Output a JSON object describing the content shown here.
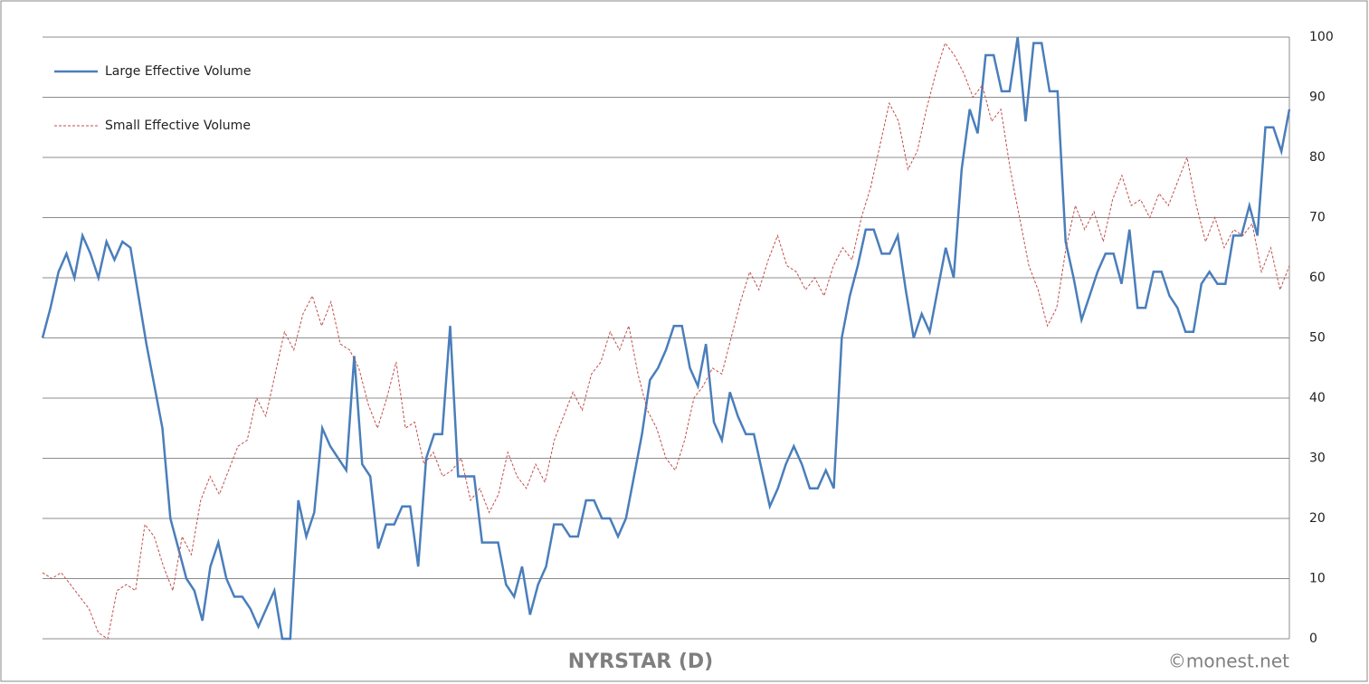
{
  "chart_data": {
    "type": "line",
    "title": "NYRSTAR (D)",
    "annotation": "©monest.net",
    "ylim": [
      0,
      100
    ],
    "yticks": [
      0,
      10,
      20,
      30,
      40,
      50,
      60,
      70,
      80,
      90,
      100
    ],
    "grid": true,
    "legend": "top-left",
    "series": [
      {
        "name": "Large Effective Volume",
        "color": "#4a7ebb",
        "dash": false,
        "values": [
          50,
          55,
          61,
          64,
          60,
          67,
          64,
          60,
          66,
          63,
          66,
          65,
          57,
          49,
          42,
          35,
          20,
          15,
          10,
          8,
          3,
          12,
          16,
          10,
          7,
          7,
          5,
          2,
          5,
          8,
          0,
          0,
          23,
          17,
          21,
          35,
          32,
          30,
          28,
          47,
          29,
          27,
          15,
          19,
          19,
          22,
          22,
          12,
          30,
          34,
          34,
          52,
          27,
          27,
          27,
          16,
          16,
          16,
          9,
          7,
          12,
          4,
          9,
          12,
          19,
          19,
          17,
          17,
          23,
          23,
          20,
          20,
          17,
          20,
          27,
          34,
          43,
          45,
          48,
          52,
          52,
          45,
          42,
          49,
          36,
          33,
          41,
          37,
          34,
          34,
          28,
          22,
          25,
          29,
          32,
          29,
          25,
          25,
          28,
          25,
          50,
          57,
          62,
          68,
          68,
          64,
          64,
          67,
          58,
          50,
          54,
          51,
          58,
          65,
          60,
          78,
          88,
          84,
          97,
          97,
          91,
          91,
          100,
          86,
          99,
          99,
          91,
          91,
          66,
          60,
          53,
          57,
          61,
          64,
          64,
          59,
          68,
          55,
          55,
          61,
          61,
          57,
          55,
          51,
          51,
          59,
          61,
          59,
          59,
          67,
          67,
          72,
          67,
          85,
          85,
          81,
          88
        ]
      },
      {
        "name": "Small Effective Volume",
        "color": "#c0504d",
        "dash": true,
        "values": [
          11,
          10,
          11,
          9,
          7,
          5,
          1,
          0,
          8,
          9,
          8,
          19,
          17,
          12,
          8,
          17,
          14,
          23,
          27,
          24,
          28,
          32,
          33,
          40,
          37,
          44,
          51,
          48,
          54,
          57,
          52,
          56,
          49,
          48,
          45,
          39,
          35,
          40,
          46,
          35,
          36,
          29,
          31,
          27,
          28,
          30,
          23,
          25,
          21,
          24,
          31,
          27,
          25,
          29,
          26,
          33,
          37,
          41,
          38,
          44,
          46,
          51,
          48,
          52,
          44,
          38,
          35,
          30,
          28,
          33,
          40,
          42,
          45,
          44,
          50,
          56,
          61,
          58,
          63,
          67,
          62,
          61,
          58,
          60,
          57,
          62,
          65,
          63,
          70,
          75,
          82,
          89,
          86,
          78,
          81,
          88,
          94,
          99,
          97,
          94,
          90,
          92,
          86,
          88,
          78,
          70,
          62,
          58,
          52,
          55,
          65,
          72,
          68,
          71,
          66,
          73,
          77,
          72,
          73,
          70,
          74,
          72,
          76,
          80,
          72,
          66,
          70,
          65,
          68,
          67,
          69,
          61,
          65,
          58,
          62
        ]
      }
    ]
  }
}
